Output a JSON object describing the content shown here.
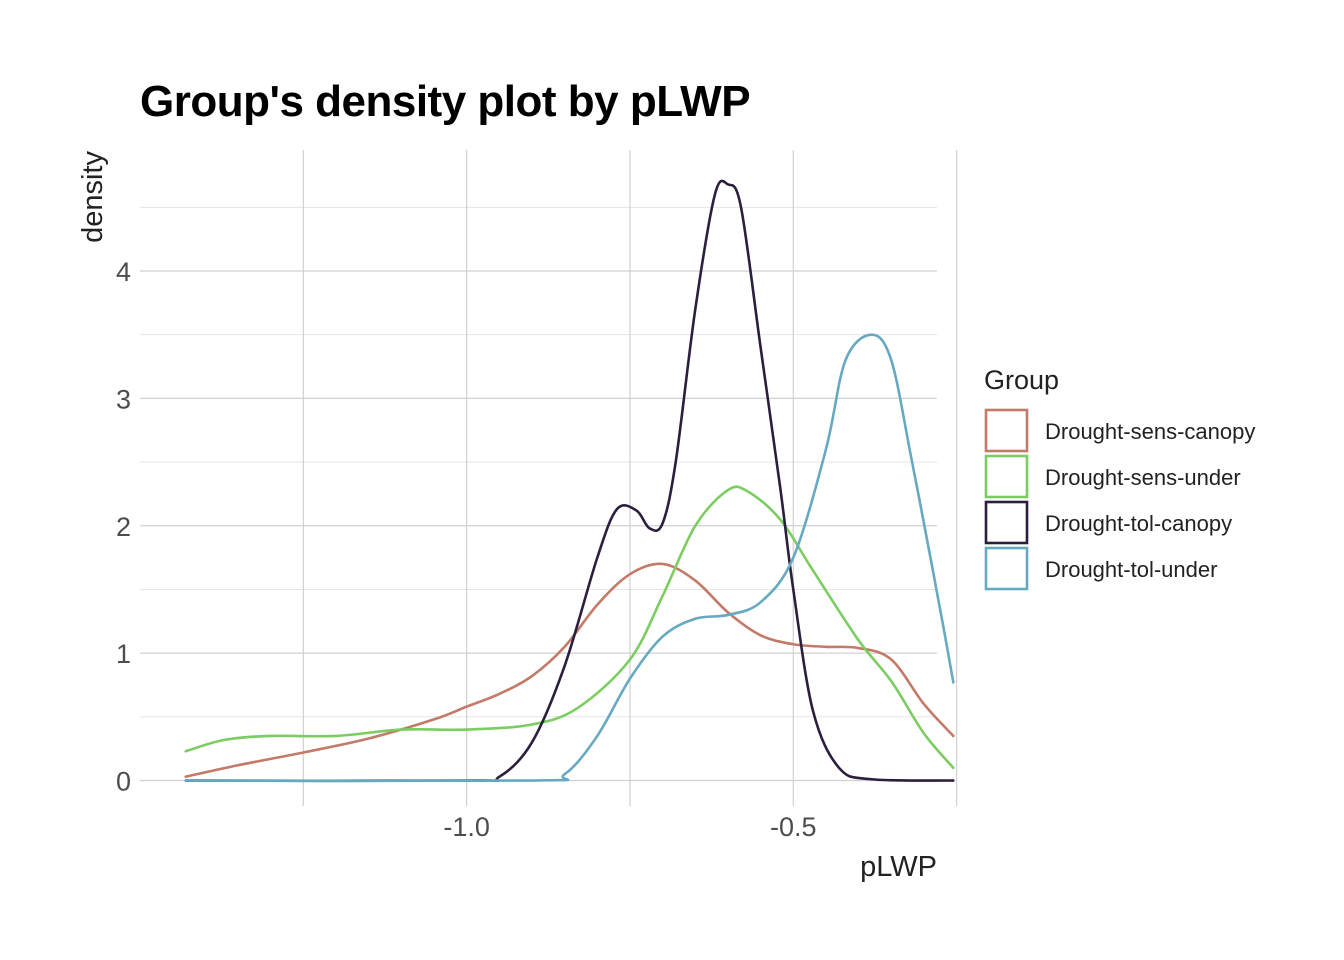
{
  "chart_data": {
    "type": "line",
    "title": "Group's density plot by pLWP",
    "xlabel": "pLWP",
    "ylabel": "density",
    "xlim": [
      -1.5,
      -0.28
    ],
    "ylim": [
      -0.2,
      4.95
    ],
    "x_ticks": [
      -1.0,
      -0.5
    ],
    "x_tick_labels": [
      "-1.0",
      "-0.5"
    ],
    "x_minor_ticks": [
      -1.25,
      -0.75,
      -0.25
    ],
    "y_ticks": [
      0,
      1,
      2,
      3,
      4
    ],
    "y_tick_labels": [
      "0",
      "1",
      "2",
      "3",
      "4"
    ],
    "y_minor_ticks": [
      0.5,
      1.5,
      2.5,
      3.5,
      4.5
    ],
    "grid": true,
    "legend": {
      "title": "Group",
      "position": "right"
    },
    "series": [
      {
        "name": "Drought-sens-canopy",
        "color": "#c47a69",
        "points": [
          [
            -1.43,
            0.03
          ],
          [
            -1.35,
            0.12
          ],
          [
            -1.25,
            0.22
          ],
          [
            -1.15,
            0.33
          ],
          [
            -1.05,
            0.48
          ],
          [
            -1.0,
            0.58
          ],
          [
            -0.95,
            0.68
          ],
          [
            -0.9,
            0.82
          ],
          [
            -0.85,
            1.05
          ],
          [
            -0.8,
            1.38
          ],
          [
            -0.75,
            1.62
          ],
          [
            -0.7,
            1.7
          ],
          [
            -0.65,
            1.57
          ],
          [
            -0.6,
            1.32
          ],
          [
            -0.55,
            1.14
          ],
          [
            -0.5,
            1.07
          ],
          [
            -0.45,
            1.05
          ],
          [
            -0.4,
            1.04
          ],
          [
            -0.35,
            0.95
          ],
          [
            -0.3,
            0.6
          ],
          [
            -0.255,
            0.35
          ]
        ]
      },
      {
        "name": "Drought-sens-under",
        "color": "#7bcd61",
        "points": [
          [
            -1.43,
            0.23
          ],
          [
            -1.37,
            0.32
          ],
          [
            -1.3,
            0.35
          ],
          [
            -1.2,
            0.35
          ],
          [
            -1.1,
            0.4
          ],
          [
            -1.0,
            0.4
          ],
          [
            -0.9,
            0.44
          ],
          [
            -0.83,
            0.57
          ],
          [
            -0.75,
            0.95
          ],
          [
            -0.7,
            1.45
          ],
          [
            -0.65,
            2.0
          ],
          [
            -0.6,
            2.28
          ],
          [
            -0.57,
            2.27
          ],
          [
            -0.52,
            2.05
          ],
          [
            -0.47,
            1.65
          ],
          [
            -0.4,
            1.1
          ],
          [
            -0.35,
            0.78
          ],
          [
            -0.3,
            0.37
          ],
          [
            -0.255,
            0.1
          ]
        ]
      },
      {
        "name": "Drought-tol-canopy",
        "color": "#2a1f3d",
        "points": [
          [
            -1.43,
            0.0
          ],
          [
            -1.0,
            0.0
          ],
          [
            -0.95,
            0.03
          ],
          [
            -0.9,
            0.3
          ],
          [
            -0.85,
            0.9
          ],
          [
            -0.8,
            1.75
          ],
          [
            -0.77,
            2.13
          ],
          [
            -0.74,
            2.12
          ],
          [
            -0.72,
            1.98
          ],
          [
            -0.7,
            2.02
          ],
          [
            -0.68,
            2.5
          ],
          [
            -0.65,
            3.7
          ],
          [
            -0.62,
            4.6
          ],
          [
            -0.6,
            4.68
          ],
          [
            -0.58,
            4.5
          ],
          [
            -0.55,
            3.4
          ],
          [
            -0.52,
            2.3
          ],
          [
            -0.5,
            1.5
          ],
          [
            -0.47,
            0.55
          ],
          [
            -0.43,
            0.1
          ],
          [
            -0.38,
            0.01
          ],
          [
            -0.255,
            0.0
          ]
        ]
      },
      {
        "name": "Drought-tol-under",
        "color": "#66a9c1",
        "points": [
          [
            -1.43,
            0.0
          ],
          [
            -0.9,
            0.0
          ],
          [
            -0.85,
            0.05
          ],
          [
            -0.8,
            0.35
          ],
          [
            -0.75,
            0.8
          ],
          [
            -0.7,
            1.13
          ],
          [
            -0.65,
            1.27
          ],
          [
            -0.6,
            1.3
          ],
          [
            -0.55,
            1.4
          ],
          [
            -0.5,
            1.75
          ],
          [
            -0.45,
            2.6
          ],
          [
            -0.42,
            3.3
          ],
          [
            -0.38,
            3.5
          ],
          [
            -0.35,
            3.3
          ],
          [
            -0.32,
            2.55
          ],
          [
            -0.29,
            1.75
          ],
          [
            -0.27,
            1.2
          ],
          [
            -0.255,
            0.77
          ]
        ]
      }
    ]
  }
}
